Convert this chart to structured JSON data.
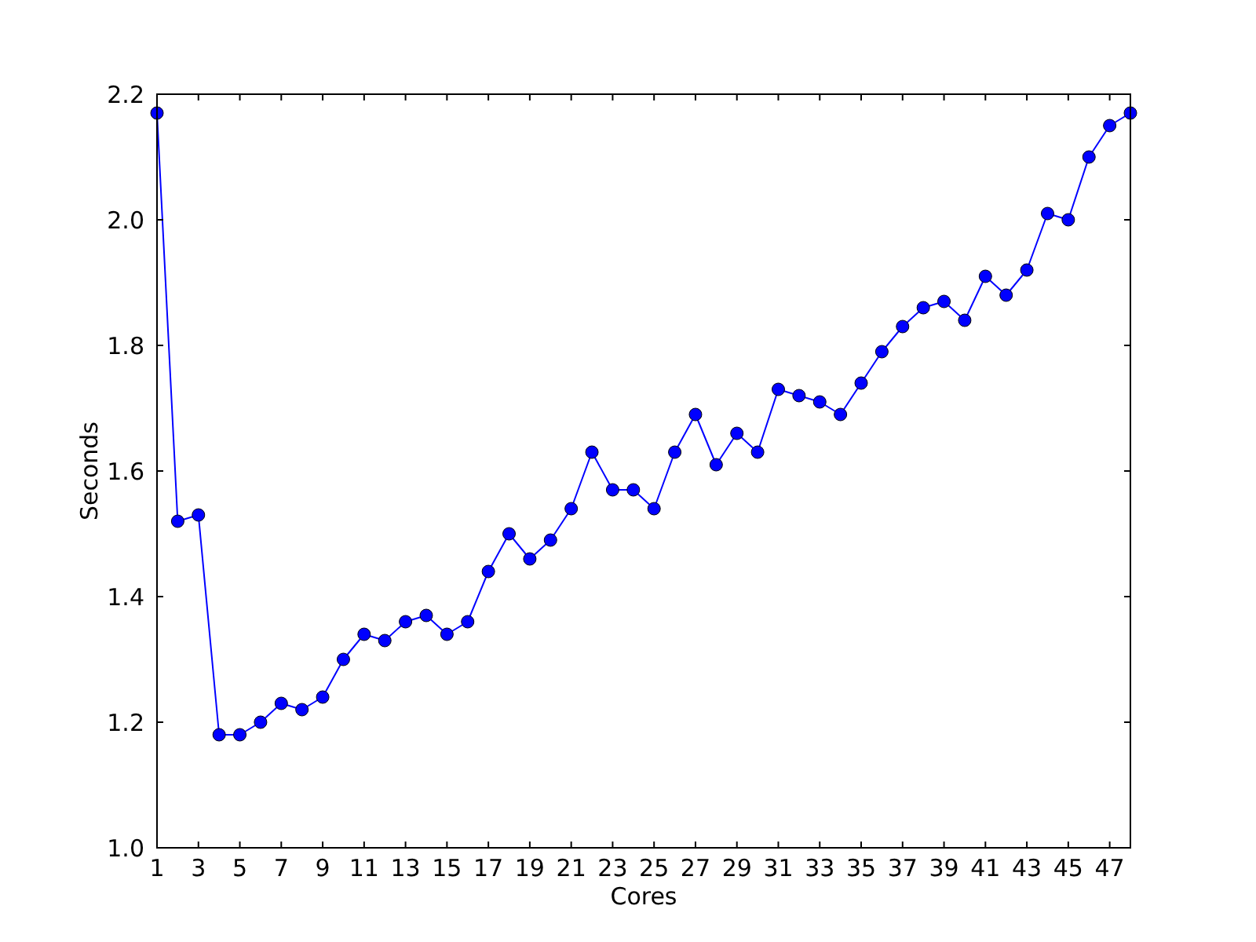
{
  "chart_data": {
    "type": "line",
    "xlabel": "Cores",
    "ylabel": "Seconds",
    "x": [
      1,
      2,
      3,
      4,
      5,
      6,
      7,
      8,
      9,
      10,
      11,
      12,
      13,
      14,
      15,
      16,
      17,
      18,
      19,
      20,
      21,
      22,
      23,
      24,
      25,
      26,
      27,
      28,
      29,
      30,
      31,
      32,
      33,
      34,
      35,
      36,
      37,
      38,
      39,
      40,
      41,
      42,
      43,
      44,
      45,
      46,
      47,
      48
    ],
    "series": [
      {
        "color": "#0000ff",
        "values": [
          2.17,
          1.52,
          1.53,
          1.18,
          1.18,
          1.2,
          1.23,
          1.22,
          1.24,
          1.3,
          1.34,
          1.33,
          1.36,
          1.37,
          1.34,
          1.36,
          1.44,
          1.5,
          1.46,
          1.49,
          1.54,
          1.63,
          1.57,
          1.57,
          1.54,
          1.63,
          1.69,
          1.61,
          1.66,
          1.63,
          1.73,
          1.72,
          1.71,
          1.69,
          1.74,
          1.79,
          1.83,
          1.86,
          1.87,
          1.84,
          1.91,
          1.88,
          1.92,
          2.01,
          2.0,
          2.1,
          2.15,
          2.17
        ]
      }
    ],
    "xlim": [
      1,
      48
    ],
    "xticks": [
      1,
      3,
      5,
      7,
      9,
      11,
      13,
      15,
      17,
      19,
      21,
      23,
      25,
      27,
      29,
      31,
      33,
      35,
      37,
      39,
      41,
      43,
      45,
      47
    ],
    "ylim": [
      1,
      2.2
    ],
    "yticks": [
      {
        "value": 1,
        "label": "1.0"
      },
      {
        "value": 1.2,
        "label": "1.2"
      },
      {
        "value": 1.4,
        "label": "1.4"
      },
      {
        "value": 1.6,
        "label": "1.6"
      },
      {
        "value": 1.8,
        "label": "1.8"
      },
      {
        "value": 2,
        "label": "2.0"
      },
      {
        "value": 2.2,
        "label": "2.2"
      }
    ],
    "marker": "circle",
    "line_style": "solid"
  }
}
